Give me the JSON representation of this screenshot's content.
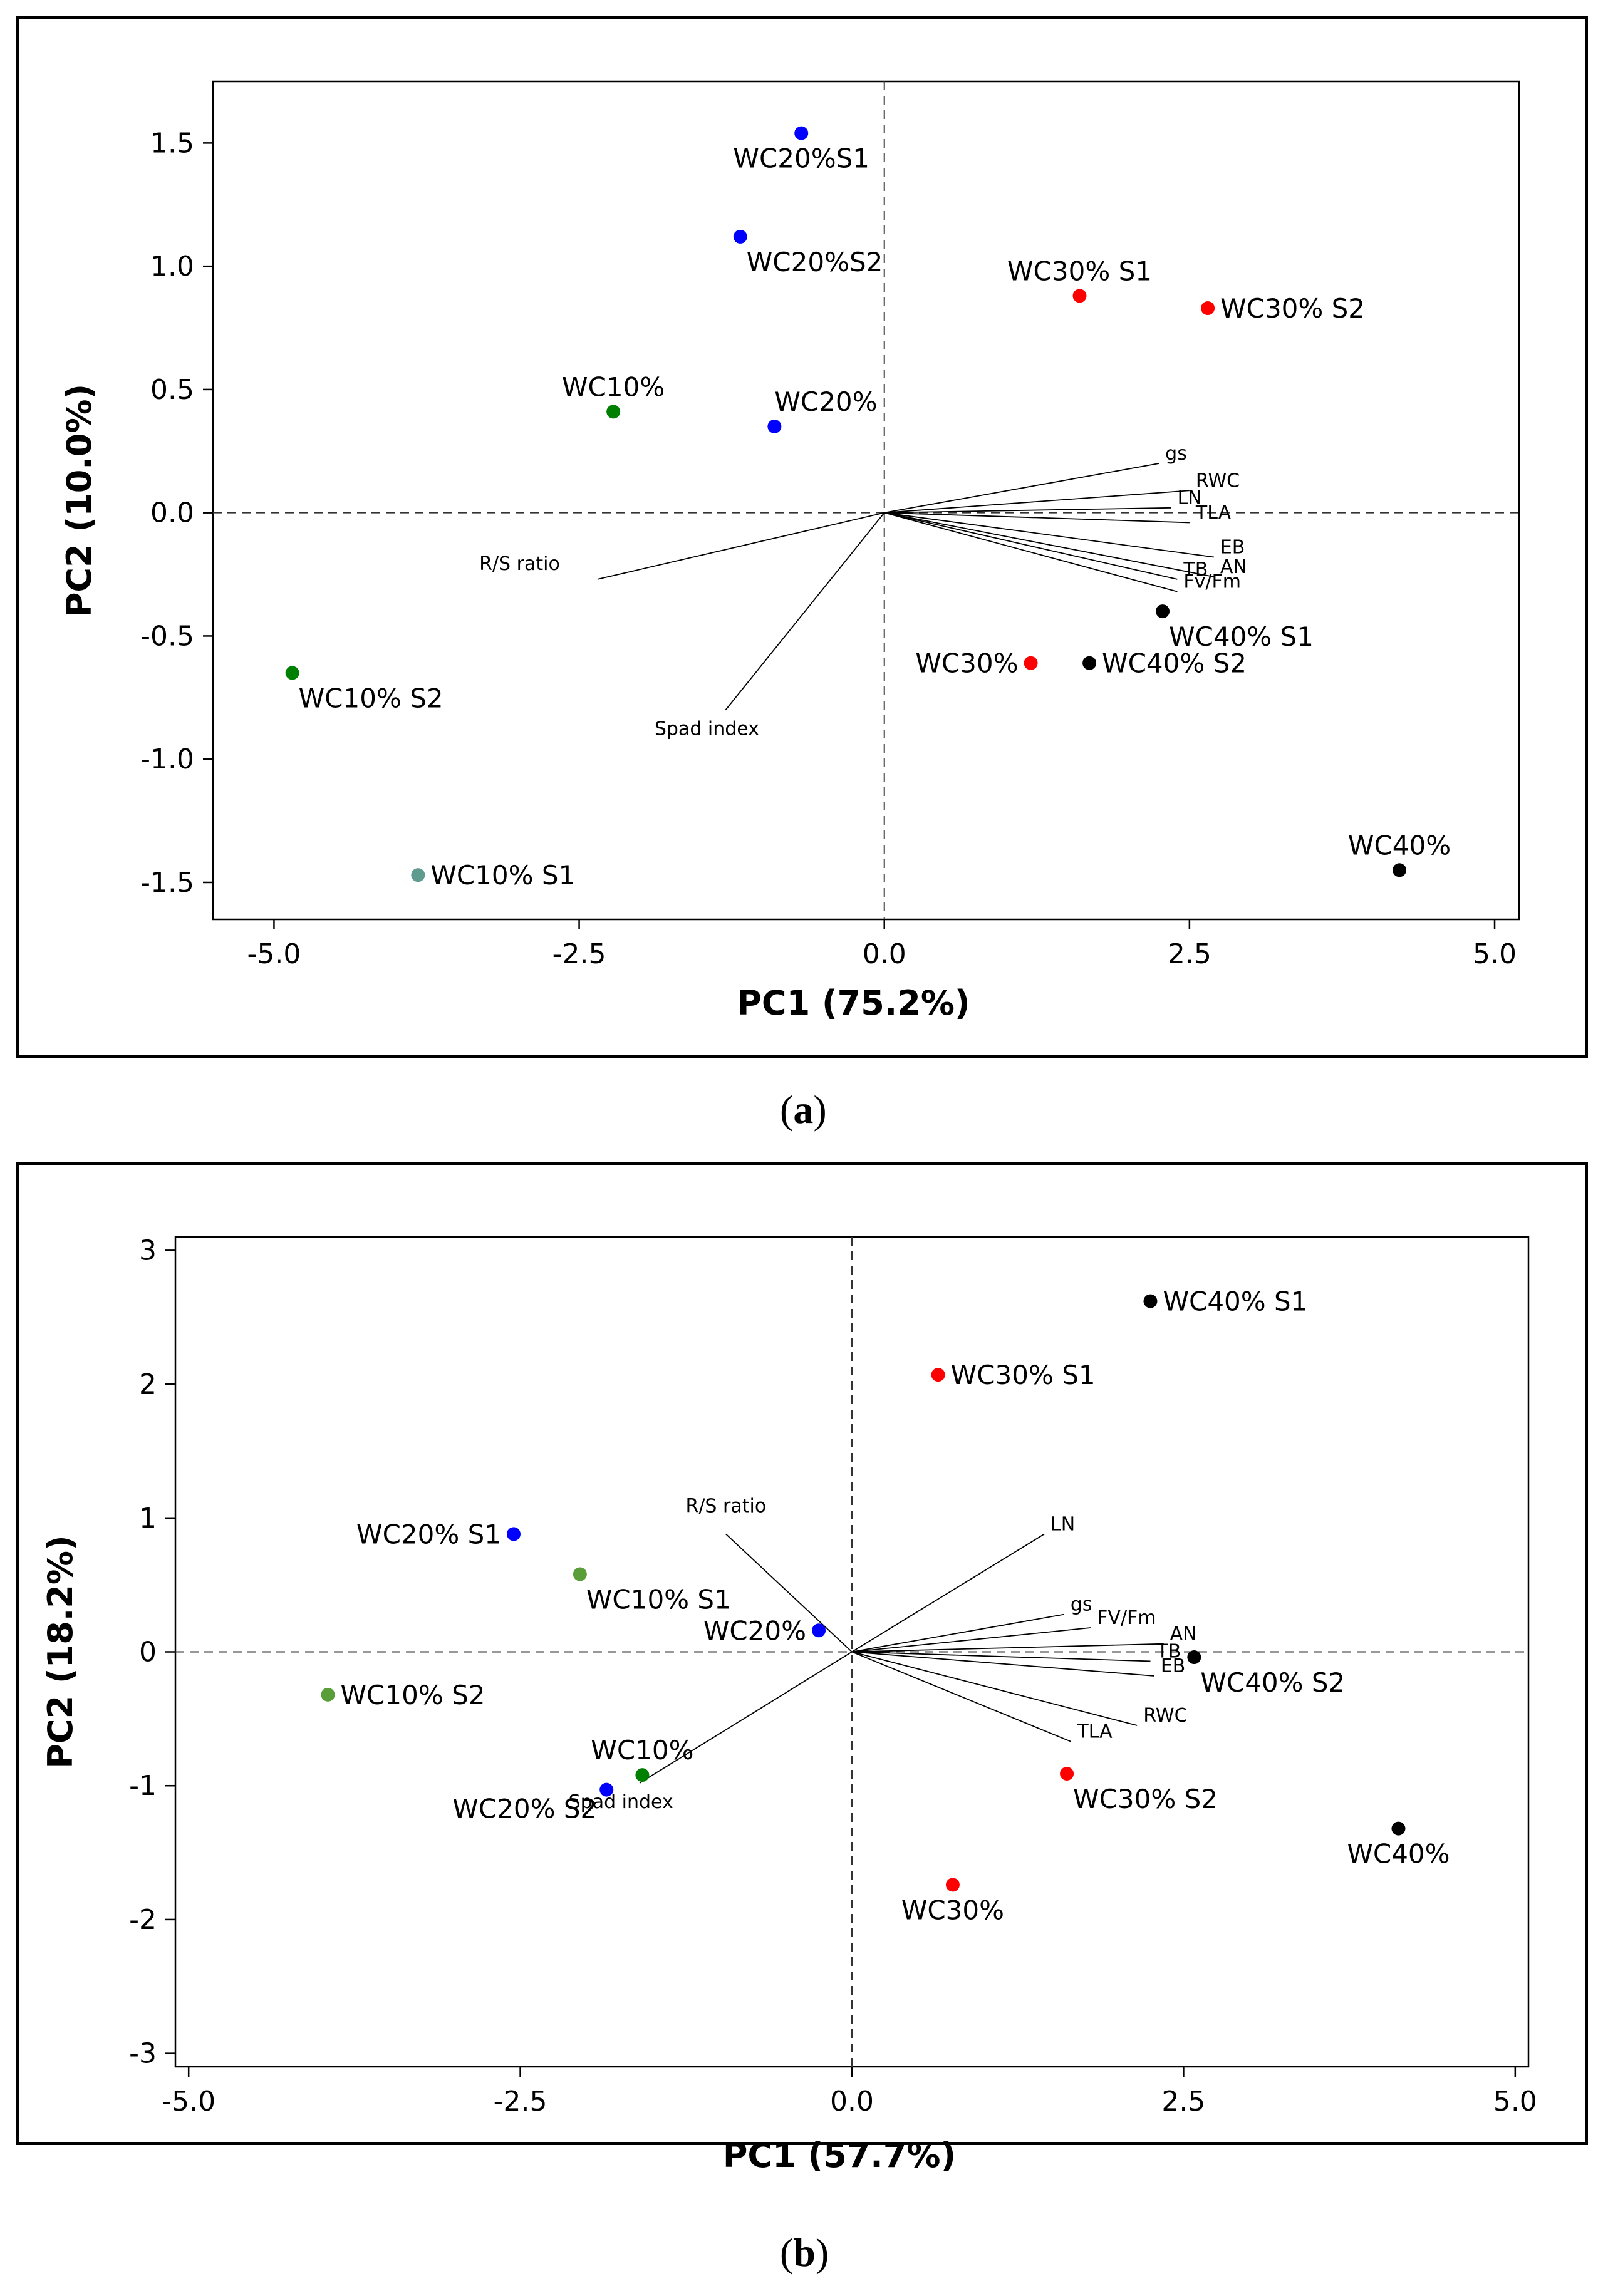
{
  "captions": {
    "a": "a",
    "b": "b"
  },
  "chart_data": [
    {
      "id": "a",
      "type": "scatter",
      "subtype": "pca-biplot",
      "xlabel": "PC1 (75.2%)",
      "ylabel": "PC2 (10.0%)",
      "xlim": [
        -5.5,
        5.2
      ],
      "ylim": [
        -1.65,
        1.75
      ],
      "xticks": [
        -5.0,
        -2.5,
        0.0,
        2.5,
        5.0
      ],
      "xtick_labels": [
        "-5.0",
        "-2.5",
        "0.0",
        "2.5",
        "5.0"
      ],
      "yticks": [
        -1.5,
        -1.0,
        -0.5,
        0.0,
        0.5,
        1.0,
        1.5
      ],
      "ytick_labels": [
        "-1.5",
        "-1.0",
        "-0.5",
        "0.0",
        "0.5",
        "1.0",
        "1.5"
      ],
      "points": [
        {
          "label": "WC20%S1",
          "x": -0.68,
          "y": 1.54,
          "color": "#0000ff",
          "pos": "below"
        },
        {
          "label": "WC20%S2",
          "x": -1.18,
          "y": 1.12,
          "color": "#0000ff",
          "pos": "below-right"
        },
        {
          "label": "WC20%",
          "x": -0.9,
          "y": 0.35,
          "color": "#0000ff",
          "pos": "above-right"
        },
        {
          "label": "WC10%",
          "x": -2.22,
          "y": 0.41,
          "color": "#008000",
          "pos": "above"
        },
        {
          "label": "WC10% S2",
          "x": -4.85,
          "y": -0.65,
          "color": "#008000",
          "pos": "below-right"
        },
        {
          "label": "WC10% S1",
          "x": -3.82,
          "y": -1.47,
          "color": "#5f9c8f",
          "pos": "right"
        },
        {
          "label": "WC30% S1",
          "x": 1.6,
          "y": 0.88,
          "color": "#ff0000",
          "pos": "above"
        },
        {
          "label": "WC30% S2",
          "x": 2.65,
          "y": 0.83,
          "color": "#ff0000",
          "pos": "right"
        },
        {
          "label": "WC30%",
          "x": 1.2,
          "y": -0.61,
          "color": "#ff0000",
          "pos": "left"
        },
        {
          "label": "WC40% S2",
          "x": 1.68,
          "y": -0.61,
          "color": "#000000",
          "pos": "right"
        },
        {
          "label": "WC40% S1",
          "x": 2.28,
          "y": -0.4,
          "color": "#000000",
          "pos": "below-right"
        },
        {
          "label": "WC40%",
          "x": 4.22,
          "y": -1.45,
          "color": "#000000",
          "pos": "above"
        }
      ],
      "loadings": [
        {
          "label": "gs",
          "x": 2.25,
          "y": 0.2
        },
        {
          "label": "RWC",
          "x": 2.5,
          "y": 0.09
        },
        {
          "label": "LN",
          "x": 2.35,
          "y": 0.02
        },
        {
          "label": "TLA",
          "x": 2.5,
          "y": -0.04
        },
        {
          "label": "EB",
          "x": 2.7,
          "y": -0.18
        },
        {
          "label": "AN",
          "x": 2.7,
          "y": -0.26
        },
        {
          "label": "TB",
          "x": 2.4,
          "y": -0.27
        },
        {
          "label": "Fv/Fm",
          "x": 2.4,
          "y": -0.32
        },
        {
          "label": "R/S ratio",
          "x": -2.35,
          "y": -0.27
        },
        {
          "label": "Spad index",
          "x": -1.3,
          "y": -0.8
        }
      ]
    },
    {
      "id": "b",
      "type": "scatter",
      "subtype": "pca-biplot",
      "xlabel": "PC1 (57.7%)",
      "ylabel": "PC2 (18.2%)",
      "xlim": [
        -5.1,
        5.1
      ],
      "ylim": [
        -3.1,
        3.1
      ],
      "xticks": [
        -5.0,
        -2.5,
        0.0,
        2.5,
        5.0
      ],
      "xtick_labels": [
        "-5.0",
        "-2.5",
        "0.0",
        "2.5",
        "5.0"
      ],
      "yticks": [
        -3,
        -2,
        -1,
        0,
        1,
        2,
        3
      ],
      "ytick_labels": [
        "-3",
        "-2",
        "-1",
        "0",
        "1",
        "2",
        "3"
      ],
      "points": [
        {
          "label": "WC40% S1",
          "x": 2.25,
          "y": 2.62,
          "color": "#000000",
          "pos": "right"
        },
        {
          "label": "WC30% S1",
          "x": 0.65,
          "y": 2.07,
          "color": "#ff0000",
          "pos": "right"
        },
        {
          "label": "WC20% S1",
          "x": -2.55,
          "y": 0.88,
          "color": "#0000ff",
          "pos": "left"
        },
        {
          "label": "WC10% S1",
          "x": -2.05,
          "y": 0.58,
          "color": "#5a9e3a",
          "pos": "below-right"
        },
        {
          "label": "WC20%",
          "x": -0.25,
          "y": 0.16,
          "color": "#0000ff",
          "pos": "left"
        },
        {
          "label": "WC10% S2",
          "x": -3.95,
          "y": -0.32,
          "color": "#5a9e3a",
          "pos": "right"
        },
        {
          "label": "WC40% S2",
          "x": 2.58,
          "y": -0.04,
          "color": "#000000",
          "pos": "below-right"
        },
        {
          "label": "WC10%",
          "x": -1.58,
          "y": -0.92,
          "color": "#008000",
          "pos": "above"
        },
        {
          "label": "WC20% S2",
          "x": -1.85,
          "y": -1.03,
          "color": "#0000ff",
          "pos": "below-left"
        },
        {
          "label": "WC30% S2",
          "x": 1.62,
          "y": -0.91,
          "color": "#ff0000",
          "pos": "below-right"
        },
        {
          "label": "WC30%",
          "x": 0.76,
          "y": -1.74,
          "color": "#ff0000",
          "pos": "below"
        },
        {
          "label": "WC40%",
          "x": 4.12,
          "y": -1.32,
          "color": "#000000",
          "pos": "below"
        }
      ],
      "loadings": [
        {
          "label": "LN",
          "x": 1.45,
          "y": 0.88
        },
        {
          "label": "gs",
          "x": 1.6,
          "y": 0.28
        },
        {
          "label": "FV/Fm",
          "x": 1.8,
          "y": 0.18
        },
        {
          "label": "AN",
          "x": 2.35,
          "y": 0.06
        },
        {
          "label": "TB",
          "x": 2.25,
          "y": -0.07
        },
        {
          "label": "EB",
          "x": 2.28,
          "y": -0.18
        },
        {
          "label": "RWC",
          "x": 2.15,
          "y": -0.55
        },
        {
          "label": "TLA",
          "x": 1.65,
          "y": -0.67
        },
        {
          "label": "R/S ratio",
          "x": -0.95,
          "y": 0.88
        },
        {
          "label": "Spad index",
          "x": -1.6,
          "y": -0.98
        }
      ]
    }
  ]
}
